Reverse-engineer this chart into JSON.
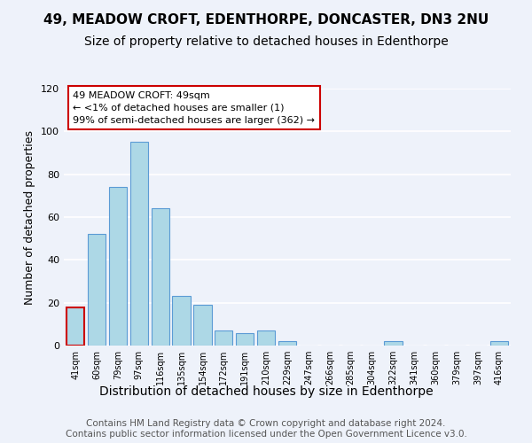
{
  "title1": "49, MEADOW CROFT, EDENTHORPE, DONCASTER, DN3 2NU",
  "title2": "Size of property relative to detached houses in Edenthorpe",
  "xlabel": "Distribution of detached houses by size in Edenthorpe",
  "ylabel": "Number of detached properties",
  "bin_labels": [
    "41sqm",
    "60sqm",
    "79sqm",
    "97sqm",
    "116sqm",
    "135sqm",
    "154sqm",
    "172sqm",
    "191sqm",
    "210sqm",
    "229sqm",
    "247sqm",
    "266sqm",
    "285sqm",
    "304sqm",
    "322sqm",
    "341sqm",
    "360sqm",
    "379sqm",
    "397sqm",
    "416sqm"
  ],
  "bar_heights": [
    18,
    52,
    74,
    95,
    64,
    23,
    19,
    7,
    6,
    7,
    2,
    0,
    0,
    0,
    0,
    2,
    0,
    0,
    0,
    0,
    2
  ],
  "bar_color": "#add8e6",
  "bar_edge_color": "#5b9bd5",
  "highlight_bar_index": 0,
  "highlight_edge_color": "#cc0000",
  "ylim": [
    0,
    120
  ],
  "yticks": [
    0,
    20,
    40,
    60,
    80,
    100,
    120
  ],
  "annotation_text": "49 MEADOW CROFT: 49sqm\n← <1% of detached houses are smaller (1)\n99% of semi-detached houses are larger (362) →",
  "annotation_box_edge_color": "#cc0000",
  "footer_text": "Contains HM Land Registry data © Crown copyright and database right 2024.\nContains public sector information licensed under the Open Government Licence v3.0.",
  "background_color": "#eef2fa",
  "grid_color": "#ffffff",
  "title1_fontsize": 11,
  "title2_fontsize": 10,
  "xlabel_fontsize": 10,
  "ylabel_fontsize": 9,
  "footer_fontsize": 7.5
}
